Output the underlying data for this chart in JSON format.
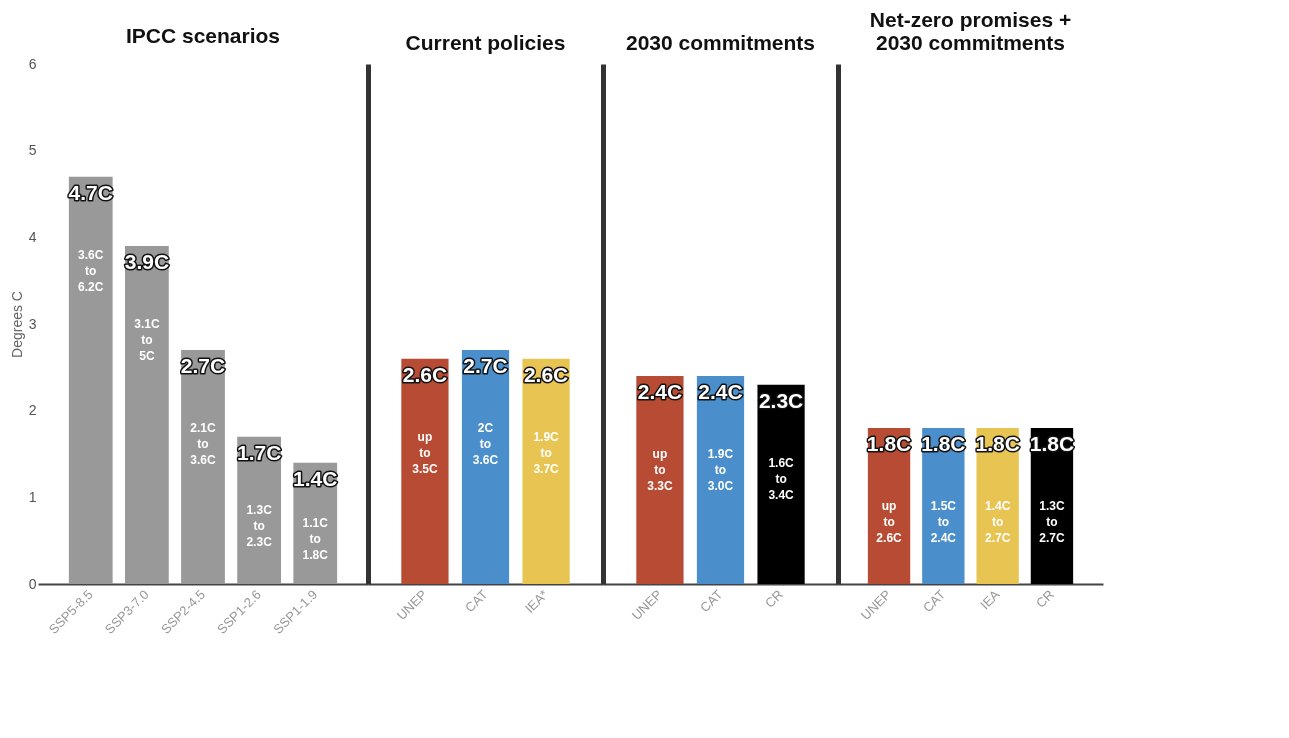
{
  "chart_data": [
    {
      "type": "bar",
      "title": "IPCC scenarios",
      "ylabel": "Degrees C",
      "ylim": [
        0,
        6
      ],
      "yticks": [
        0,
        1,
        2,
        3,
        4,
        5,
        6
      ],
      "categories": [
        "SSP5-8.5",
        "SSP3-7.0",
        "SSP2-4.5",
        "SSP1-2.6",
        "SSP1-1.9"
      ],
      "values": [
        4.7,
        3.9,
        2.7,
        1.7,
        1.4
      ],
      "colors": [
        "#999999",
        "#999999",
        "#999999",
        "#999999",
        "#999999"
      ],
      "value_labels": [
        "4.7C",
        "3.9C",
        "2.7C",
        "1.7C",
        "1.4C"
      ],
      "annotations": [
        "3.6C to 6.2C",
        "3.1C to 5C",
        "2.1C to 3.6C",
        "1.3C to 2.3C",
        "1.1C to 1.8C"
      ]
    },
    {
      "type": "bar",
      "title": "Current policies",
      "ylim": [
        0,
        6
      ],
      "yticks": [
        0,
        1,
        2,
        3,
        4,
        5,
        6
      ],
      "tick_labels": "x",
      "categories": [
        "UNEP",
        "CAT",
        "IEA*"
      ],
      "values": [
        2.6,
        2.7,
        2.6
      ],
      "colors": [
        "#b84b33",
        "#4a8fcb",
        "#e8c553"
      ],
      "value_labels": [
        "2.6C",
        "2.7C",
        "2.6C"
      ],
      "annotations": [
        "up to 3.5C",
        "2C to 3.6C",
        "1.9C to 3.7C"
      ]
    },
    {
      "type": "bar",
      "title": "2030 commitments",
      "ylim": [
        0,
        6
      ],
      "yticks": [
        0,
        1,
        2,
        3,
        4,
        5,
        6
      ],
      "tick_labels": "x",
      "categories": [
        "UNEP",
        "CAT",
        "CR"
      ],
      "values": [
        2.4,
        2.4,
        2.3
      ],
      "colors": [
        "#b84b33",
        "#4a8fcb",
        "#000000"
      ],
      "value_labels": [
        "2.4C",
        "2.4C",
        "2.3C"
      ],
      "annotations": [
        "up to 3.3C",
        "1.9C to 3.0C",
        "1.6C to 3.4C"
      ]
    },
    {
      "type": "bar",
      "title": "Net-zero promises + 2030 commitments",
      "ylim": [
        0,
        6
      ],
      "yticks": [
        0,
        1,
        2,
        3,
        4,
        5,
        6
      ],
      "tick_labels": "x",
      "categories": [
        "UNEP",
        "CAT",
        "IEA",
        "CR"
      ],
      "values": [
        1.8,
        1.8,
        1.8,
        1.8
      ],
      "colors": [
        "#b84b33",
        "#4a8fcb",
        "#e8c553",
        "#000000"
      ],
      "value_labels": [
        "1.8C",
        "1.8C",
        "1.8C",
        "1.8C"
      ],
      "annotations": [
        "up to 2.6C",
        "1.5C to 2.4C",
        "1.4C to 2.7C",
        "1.3C to 2.7C"
      ]
    }
  ]
}
